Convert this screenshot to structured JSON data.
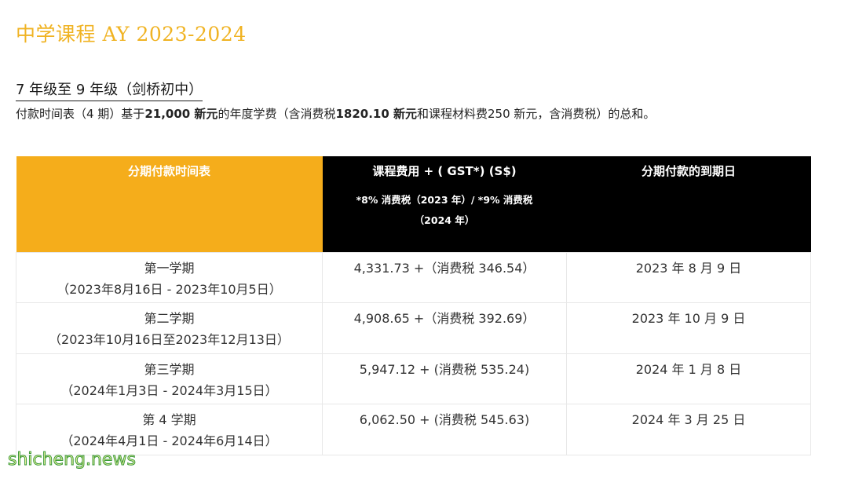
{
  "page": {
    "title": "中学课程 AY 2023-2024",
    "section_heading": "7 年级至 9 年级（剑桥初中）",
    "intro": {
      "p1": "付款时间表（4 期）基于",
      "b1": "21,000 新元",
      "p2": "的年度学费（含消费税",
      "b2": "1820.10 新元",
      "p3": "和课程材料费250 新元，含消费税）的总和。"
    }
  },
  "table": {
    "headers": {
      "col1": "分期付款时间表",
      "col2": "课程费用 + ( GST*) (S$)",
      "col2_note": "*8% 消费税（2023 年）/ *9% 消费税（2024 年）",
      "col3": "分期付款的到期日"
    },
    "rows": [
      {
        "term": "第一学期",
        "period": "（2023年8月16日 - 2023年10月5日）",
        "fee": "4,331.73 +（消费税 346.54）",
        "due": "2023 年 8 月 9 日"
      },
      {
        "term": "第二学期",
        "period": "（2023年10月16日至2023年12月13日）",
        "fee": "4,908.65 +（消费税 392.69）",
        "due": "2023 年 10 月 9 日"
      },
      {
        "term": "第三学期",
        "period": "（2024年1月3日 - 2024年3月15日）",
        "fee": "5,947.12 + (消费税 535.24)",
        "due": "2024 年 1 月 8 日"
      },
      {
        "term": "第 4 学期",
        "period": "（2024年4月1日 - 2024年6月14日）",
        "fee": "6,062.50 + (消费税 545.63)",
        "due": "2024 年 3 月 25 日"
      }
    ]
  },
  "watermark": "shicheng.news",
  "colors": {
    "accent": "#f5ad1b",
    "title": "#f0b323",
    "header_dark": "#000000"
  }
}
